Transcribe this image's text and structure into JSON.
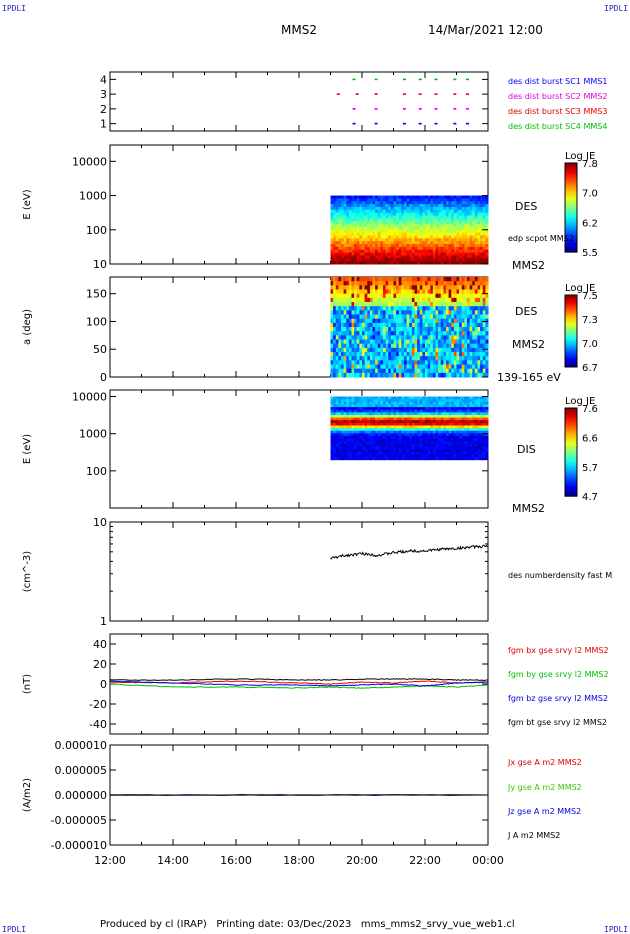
{
  "corner_tags": {
    "top_left": "IPDLI",
    "top_right": "IPDLI",
    "bottom_left": "IPDLI",
    "bottom_right": "IPDLI"
  },
  "header": {
    "spacecraft": "MMS2",
    "datetime": "14/Mar/2021 12:00"
  },
  "footer": "Produced by cl (IRAP)   Printing date: 03/Dec/2023   mms_mms2_srvy_vue_web1.cl",
  "chart_data": [
    {
      "type": "scatter",
      "ylim": [
        0.5,
        4.5
      ],
      "yticks": [
        "1",
        "2",
        "3",
        "4"
      ],
      "series": [
        {
          "name": "des dist burst SC1 MMS1",
          "y": 1,
          "color": "#0000ff",
          "x_hours": [
            19.7,
            20.4,
            21.3,
            21.8,
            22.3,
            22.9,
            23.3
          ]
        },
        {
          "name": "des dist burst SC2 MMS2",
          "y": 2,
          "color": "#e000e0",
          "x_hours": [
            19.7,
            20.4,
            21.3,
            21.8,
            22.3,
            22.9,
            23.3
          ]
        },
        {
          "name": "des dist burst SC3 MMS3",
          "y": 3,
          "color": "#e00000",
          "x_hours": [
            19.2,
            19.8,
            20.4,
            21.3,
            21.8,
            22.3,
            22.9,
            23.3
          ]
        },
        {
          "name": "des dist burst SC4 MMS4",
          "y": 4,
          "color": "#00c000",
          "x_hours": [
            19.7,
            20.4,
            21.3,
            21.8,
            22.3,
            22.9,
            23.3
          ]
        }
      ]
    },
    {
      "type": "heatmap",
      "ylabel": "E (eV)",
      "yscale": "log",
      "ylim": [
        10,
        30000
      ],
      "yticks": [
        "10",
        "100",
        "1000",
        "10000"
      ],
      "label": "DES",
      "sublabel": "edp scpot MMS2",
      "spacecraft": "MMS2",
      "data_start_hour": 19.0,
      "energy_range": [
        10,
        1000
      ],
      "colorbar": {
        "title": "Log JE",
        "ticks": [
          "7.8",
          "7.0",
          "6.2",
          "5.5"
        ],
        "range": [
          5.5,
          7.8
        ]
      }
    },
    {
      "type": "heatmap",
      "ylabel": "a (deg)",
      "ylim": [
        0,
        180
      ],
      "yticks": [
        "0",
        "50",
        "100",
        "150"
      ],
      "label": "DES",
      "spacecraft": "MMS2",
      "energy_band": "139-165 eV",
      "data_start_hour": 19.0,
      "colorbar": {
        "title": "Log JE",
        "ticks": [
          "7.5",
          "7.3",
          "7.0",
          "6.7"
        ],
        "range": [
          6.7,
          7.5
        ]
      }
    },
    {
      "type": "heatmap",
      "ylabel": "E (eV)",
      "yscale": "log",
      "ylim": [
        10,
        15000
      ],
      "yticks": [
        "100",
        "1000",
        "10000"
      ],
      "label": "DIS",
      "spacecraft": "MMS2",
      "data_start_hour": 19.0,
      "energy_range": [
        200,
        10000
      ],
      "colorbar": {
        "title": "Log JE",
        "ticks": [
          "7.6",
          "6.6",
          "5.7",
          "4.7"
        ],
        "range": [
          4.7,
          7.6
        ]
      }
    },
    {
      "type": "line",
      "ylabel": "(cm^-3)",
      "yscale": "log",
      "ylim": [
        1,
        10
      ],
      "yticks": [
        "1",
        "10"
      ],
      "series": [
        {
          "name": "des numberdensity fast M",
          "color": "#000000",
          "x_hours": [
            19.0,
            19.5,
            20.0,
            20.5,
            21.0,
            21.5,
            22.0,
            22.5,
            23.0,
            23.5,
            24.0
          ],
          "y": [
            4.3,
            4.6,
            4.8,
            4.6,
            4.9,
            5.1,
            5.1,
            5.3,
            5.4,
            5.6,
            5.7
          ]
        }
      ]
    },
    {
      "type": "line",
      "ylabel": "(nT)",
      "ylim": [
        -50,
        50
      ],
      "yticks": [
        "-40",
        "-20",
        "0",
        "20",
        "40"
      ],
      "series": [
        {
          "name": "fgm bx gse srvy l2 MMS2",
          "color": "#e00000",
          "x_hours": [
            12,
            14,
            16,
            18,
            19,
            20,
            21,
            22,
            23,
            24
          ],
          "y": [
            2,
            1,
            3,
            1,
            0,
            2,
            1,
            3,
            1,
            2
          ]
        },
        {
          "name": "fgm by gse srvy l2 MMS2",
          "color": "#00c000",
          "x_hours": [
            12,
            14,
            16,
            18,
            19,
            20,
            21,
            22,
            23,
            24
          ],
          "y": [
            0,
            -3,
            -3,
            -4,
            -3,
            -4,
            -3,
            -2,
            -3,
            -1
          ]
        },
        {
          "name": "fgm bz gse srvy l2 MMS2",
          "color": "#0000e0",
          "x_hours": [
            12,
            14,
            16,
            18,
            19,
            20,
            21,
            22,
            23,
            24
          ],
          "y": [
            3,
            1,
            -1,
            -1,
            -2,
            -1,
            0,
            -2,
            1,
            2
          ]
        },
        {
          "name": "fgm bt gse srvy l2 MMS2",
          "color": "#000000",
          "x_hours": [
            12,
            14,
            16,
            18,
            19,
            20,
            21,
            22,
            23,
            24
          ],
          "y": [
            4,
            4,
            5,
            4,
            4,
            5,
            5,
            5,
            4,
            4
          ]
        }
      ]
    },
    {
      "type": "line",
      "ylabel": "(A/m2)",
      "ylim": [
        -1e-05,
        1e-05
      ],
      "yticks": [
        "0.000010",
        "0.000005",
        "0.000000",
        "-0.000005",
        "-0.000010"
      ],
      "series": [
        {
          "name": "Jx gse A m2 MMS2",
          "color": "#e00000",
          "x_hours": [
            12,
            24
          ],
          "y": [
            0,
            0
          ]
        },
        {
          "name": "Jy gse A m2 MMS2",
          "color": "#40c000",
          "x_hours": [
            12,
            24
          ],
          "y": [
            0,
            0
          ]
        },
        {
          "name": "Jz gse A m2 MMS2",
          "color": "#0000e0",
          "x_hours": [
            12,
            24
          ],
          "y": [
            0,
            0
          ]
        },
        {
          "name": "J A m2 MMS2",
          "color": "#000000",
          "x_hours": [
            12,
            24
          ],
          "y": [
            0,
            0
          ]
        }
      ]
    }
  ],
  "x_axis": {
    "range_hours": [
      12,
      24
    ],
    "tick_labels": [
      "12:00",
      "14:00",
      "16:00",
      "18:00",
      "20:00",
      "22:00",
      "00:00"
    ]
  }
}
